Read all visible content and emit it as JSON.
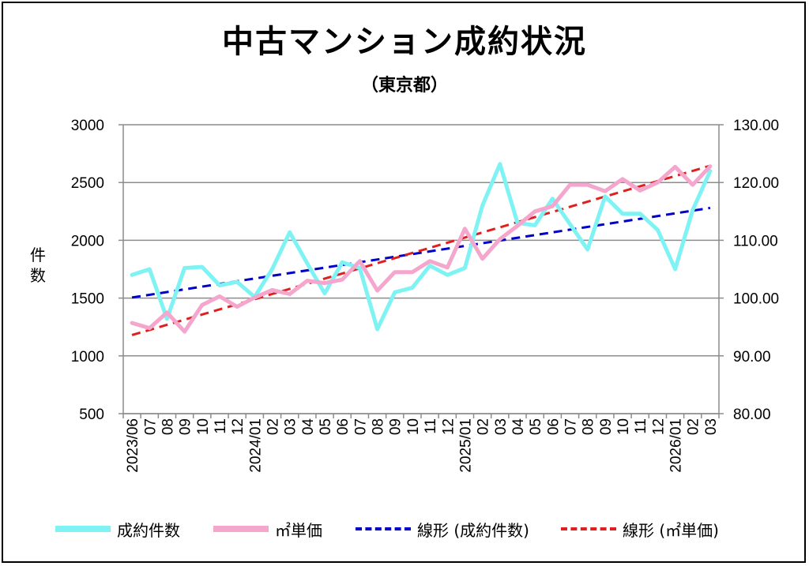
{
  "title": "中古マンション成約状況",
  "subtitle": "（東京都）",
  "chart_data": {
    "type": "line",
    "ylabel": "件数",
    "y_left_lim": [
      500,
      3000
    ],
    "y_left_ticks": [
      "500",
      "1000",
      "1500",
      "2000",
      "2500",
      "3000"
    ],
    "y_right_lim": [
      80,
      130
    ],
    "y_right_ticks": [
      "80.00",
      "90.00",
      "100.00",
      "110.00",
      "120.00",
      "130.00"
    ],
    "x_tick_labels": [
      "2023/06",
      "07",
      "08",
      "09",
      "10",
      "11",
      "12",
      "2024/01",
      "02",
      "03",
      "04",
      "05",
      "06",
      "07",
      "08",
      "09",
      "10",
      "11",
      "12",
      "2025/01",
      "02",
      "03",
      "04",
      "05",
      "06",
      "07",
      "08",
      "09",
      "10",
      "11",
      "12",
      "2026/01",
      "02",
      "03"
    ],
    "grid": true,
    "legend_position": "bottom",
    "series": [
      {
        "name": "成約件数",
        "axis": "left",
        "color": "#7ff3f3",
        "values": [
          1700,
          1750,
          1320,
          1760,
          1770,
          1610,
          1640,
          1510,
          1750,
          2070,
          1800,
          1540,
          1810,
          1760,
          1230,
          1550,
          1590,
          1780,
          1700,
          1760,
          2300,
          2660,
          2150,
          2130,
          2360,
          2140,
          1920,
          2380,
          2230,
          2230,
          2090,
          1750,
          2260,
          2600
        ]
      },
      {
        "name": "㎡単価",
        "axis": "right",
        "color": "#f4a6cc",
        "values": [
          95.7,
          94.8,
          97.5,
          94.2,
          98.8,
          100.3,
          98.5,
          100.1,
          101.4,
          100.7,
          103.0,
          102.6,
          103.2,
          106.4,
          101.3,
          104.5,
          104.5,
          106.4,
          105.3,
          112.0,
          106.8,
          110.2,
          112.5,
          115.0,
          115.9,
          119.6,
          119.6,
          118.5,
          120.6,
          118.6,
          120.0,
          122.7,
          119.6,
          122.8
        ]
      }
    ],
    "trendlines": [
      {
        "name": "線形 (成約件数)",
        "axis": "left",
        "color": "#0000c8",
        "start": 1505,
        "end": 2280
      },
      {
        "name": "線形 (㎡単価)",
        "axis": "right",
        "color": "#e02020",
        "start": 93.6,
        "end": 122.9
      }
    ]
  },
  "legend": {
    "items": [
      {
        "label": "成約件数",
        "color": "#7ff3f3",
        "style": "solid"
      },
      {
        "label": "㎡単価",
        "color": "#f4a6cc",
        "style": "solid"
      },
      {
        "label": "線形 (成約件数)",
        "color": "#0000c8",
        "style": "dashed"
      },
      {
        "label": "線形 (㎡単価)",
        "color": "#e02020",
        "style": "dashed"
      }
    ]
  }
}
